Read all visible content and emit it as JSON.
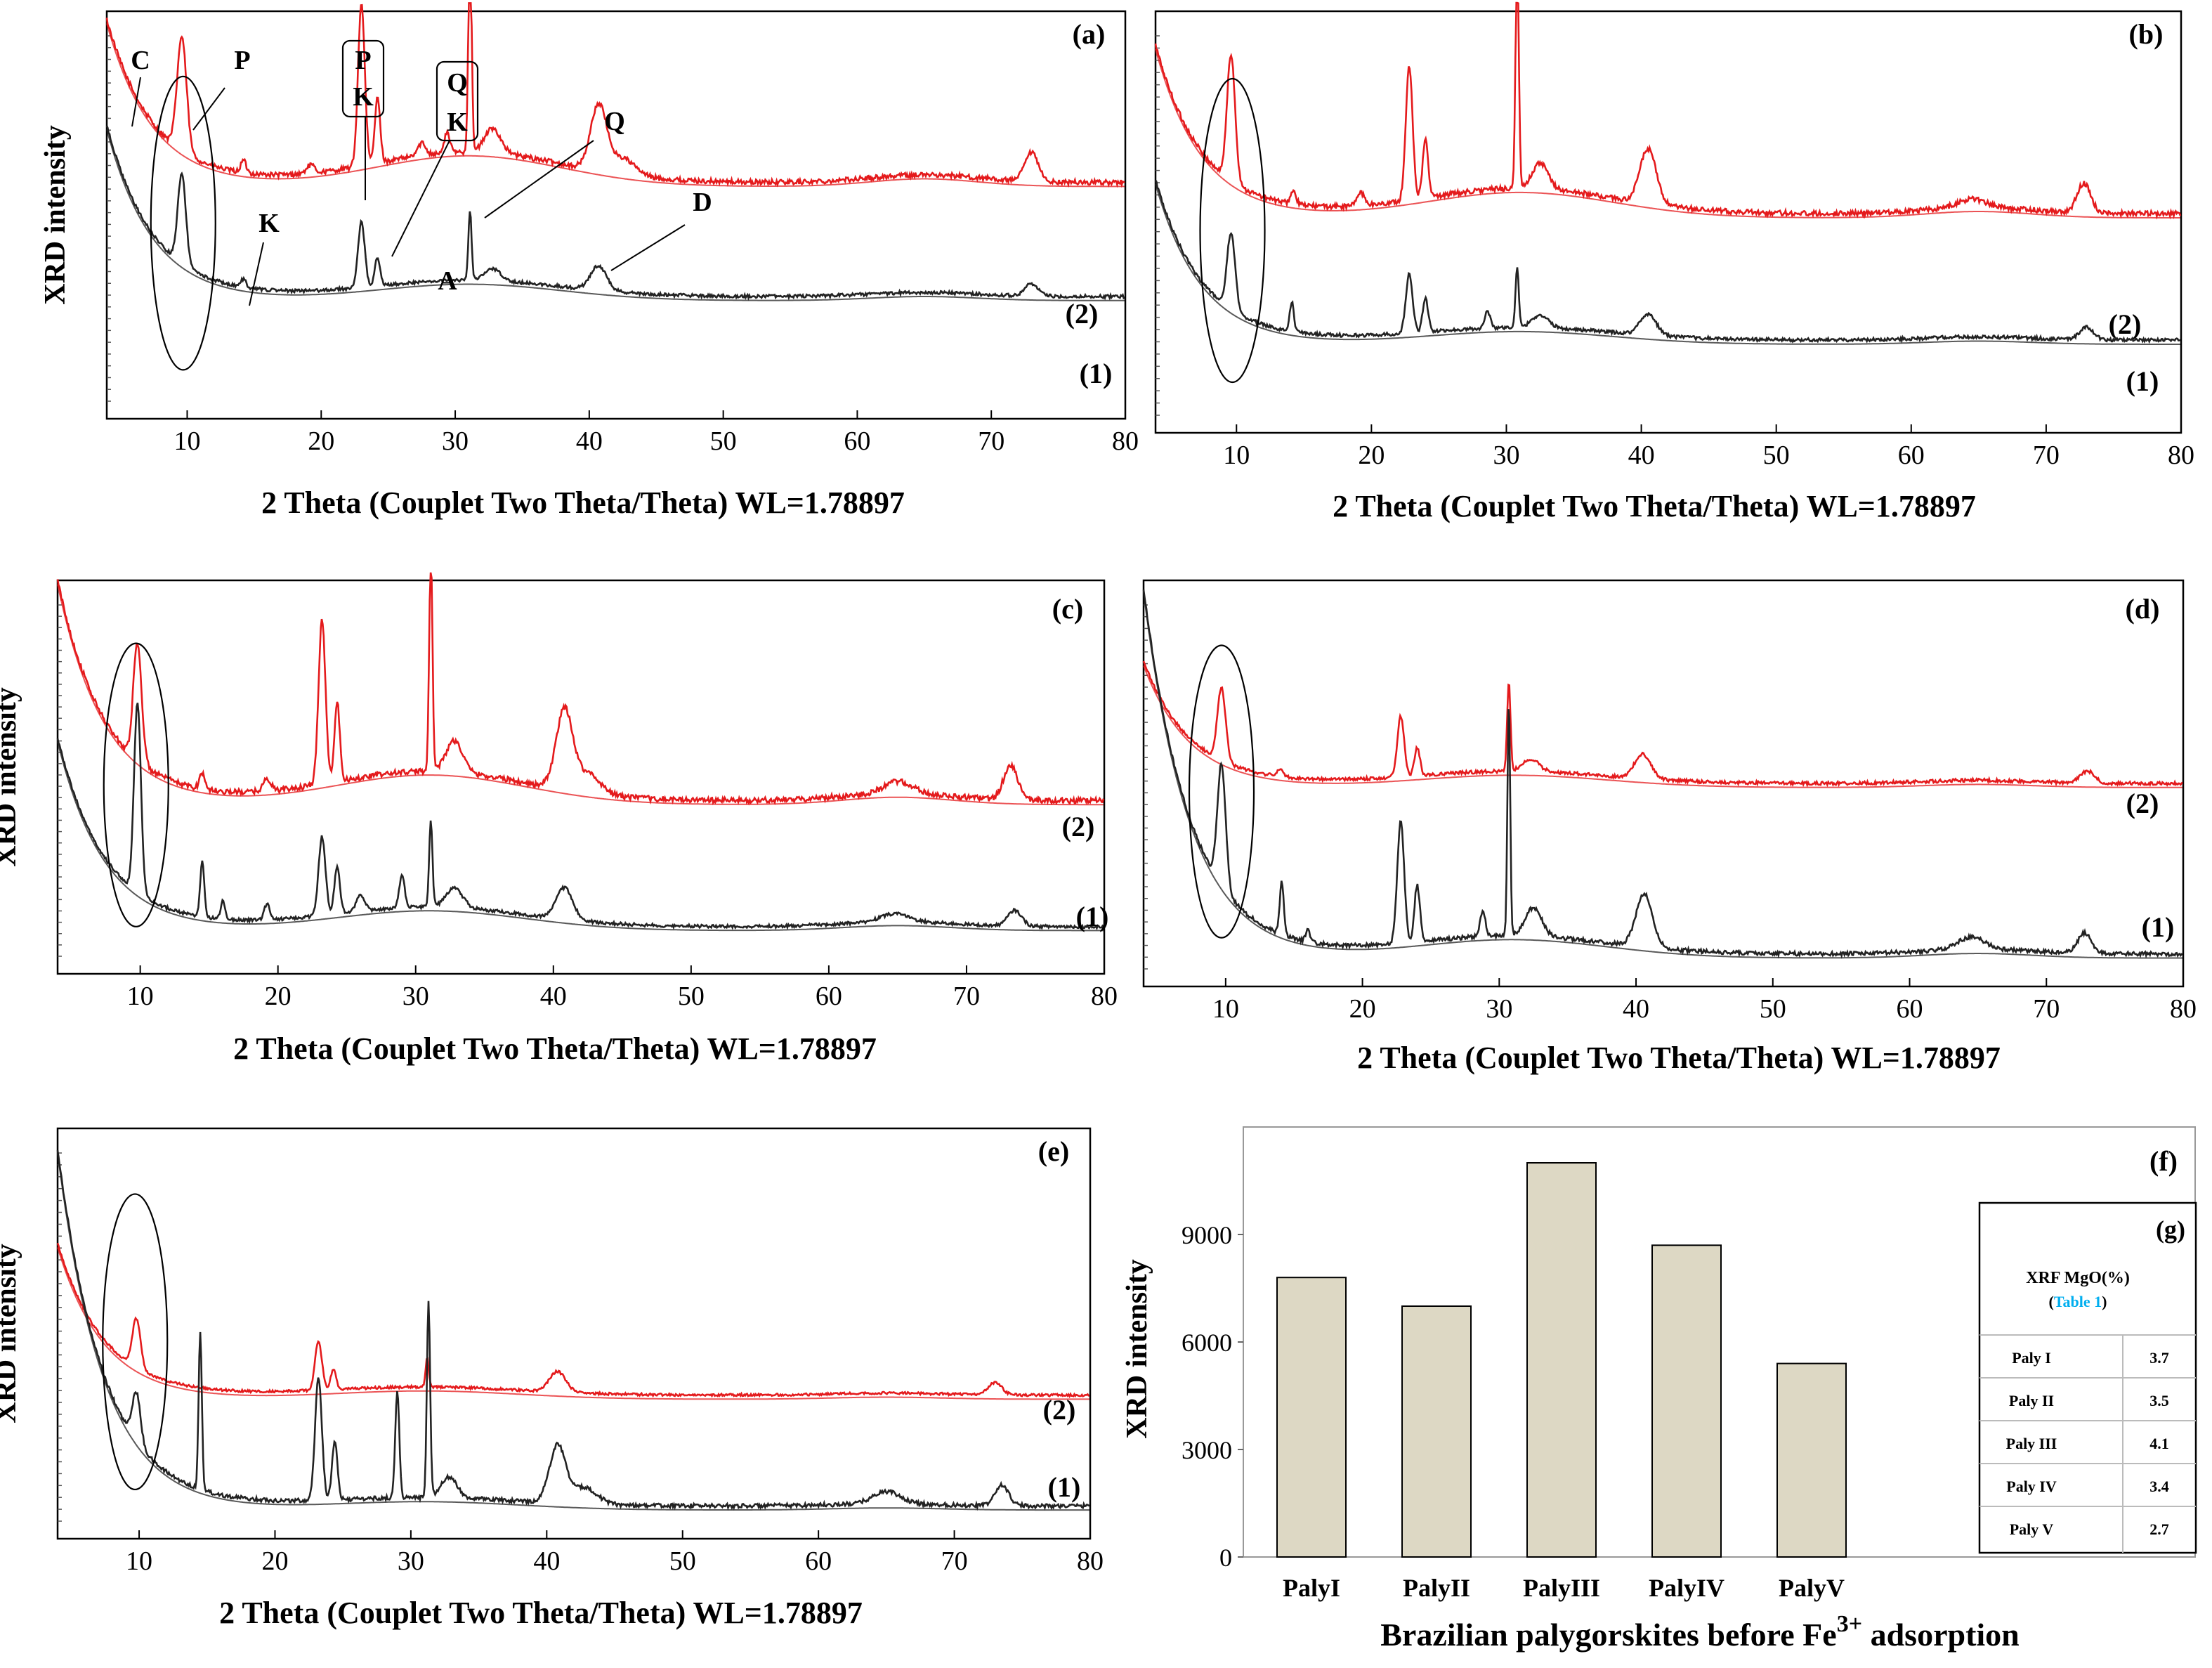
{
  "chart_data": [
    {
      "panel": "(a)",
      "type": "line",
      "ylabel": "XRD intensity",
      "xlabel": "2 Theta (Couplet Two Theta/Theta) WL=1.78897",
      "xlim": [
        4,
        80
      ],
      "xticks": [
        10,
        20,
        30,
        40,
        50,
        60,
        70,
        80
      ],
      "series_labels": [
        "(2)",
        "(1)"
      ],
      "series": [
        {
          "name": "(2)",
          "color": "#e41a1c",
          "base": 0.58,
          "start": 0.98,
          "bump": 0.075,
          "noise": 0.006,
          "peaks": [
            [
              9.6,
              0.28,
              0.35
            ],
            [
              14.2,
              0.03,
              0.2
            ],
            [
              19.2,
              0.02,
              0.3
            ],
            [
              23.0,
              0.4,
              0.25
            ],
            [
              24.2,
              0.16,
              0.2
            ],
            [
              27.5,
              0.03,
              0.3
            ],
            [
              29.4,
              0.05,
              0.2
            ],
            [
              31.1,
              0.55,
              0.12
            ],
            [
              32.8,
              0.06,
              0.6
            ],
            [
              40.7,
              0.16,
              0.6
            ],
            [
              42.5,
              0.04,
              0.9
            ],
            [
              73.0,
              0.07,
              0.5
            ]
          ]
        },
        {
          "name": "(1)",
          "color": "#222222",
          "base": 0.3,
          "start": 0.72,
          "bump": 0.04,
          "noise": 0.004,
          "peaks": [
            [
              9.6,
              0.22,
              0.3
            ],
            [
              14.2,
              0.02,
              0.2
            ],
            [
              23.0,
              0.16,
              0.25
            ],
            [
              24.2,
              0.07,
              0.2
            ],
            [
              31.1,
              0.17,
              0.12
            ],
            [
              32.8,
              0.03,
              0.6
            ],
            [
              40.7,
              0.06,
              0.6
            ],
            [
              73.0,
              0.03,
              0.5
            ]
          ]
        }
      ],
      "annotations": [
        "C",
        "P",
        "P",
        "K",
        "Q",
        "K",
        "K",
        "Q",
        "D",
        "A"
      ]
    },
    {
      "panel": "(b)",
      "type": "line",
      "ylabel": "",
      "xlabel": "2 Theta (Couplet Two Theta/Theta) WL=1.78897",
      "xlim": [
        4,
        80
      ],
      "xticks": [
        10,
        20,
        30,
        40,
        50,
        60,
        70,
        80
      ],
      "series_labels": [
        "(2)",
        "(1)"
      ],
      "series": [
        {
          "name": "(2)",
          "color": "#e41a1c",
          "base": 0.52,
          "start": 0.92,
          "bump": 0.06,
          "noise": 0.006,
          "peaks": [
            [
              9.6,
              0.3,
              0.3
            ],
            [
              14.2,
              0.03,
              0.2
            ],
            [
              19.2,
              0.03,
              0.3
            ],
            [
              22.8,
              0.32,
              0.25
            ],
            [
              24.0,
              0.14,
              0.2
            ],
            [
              30.8,
              0.55,
              0.12
            ],
            [
              32.5,
              0.06,
              0.6
            ],
            [
              40.5,
              0.13,
              0.6
            ],
            [
              64.5,
              0.02,
              1.0
            ],
            [
              72.8,
              0.07,
              0.5
            ]
          ]
        },
        {
          "name": "(1)",
          "color": "#222222",
          "base": 0.22,
          "start": 0.6,
          "bump": 0.03,
          "noise": 0.004,
          "peaks": [
            [
              9.6,
              0.18,
              0.3
            ],
            [
              14.1,
              0.07,
              0.15
            ],
            [
              22.8,
              0.14,
              0.25
            ],
            [
              24.0,
              0.08,
              0.2
            ],
            [
              28.6,
              0.04,
              0.2
            ],
            [
              30.8,
              0.14,
              0.12
            ],
            [
              32.5,
              0.03,
              0.6
            ],
            [
              40.5,
              0.05,
              0.6
            ],
            [
              73.0,
              0.03,
              0.5
            ]
          ]
        }
      ]
    },
    {
      "panel": "(c)",
      "type": "line",
      "ylabel": "XRD intensity",
      "xlabel": "2 Theta (Couplet Two Theta/Theta) WL=1.78897",
      "xlim": [
        4,
        80
      ],
      "xticks": [
        10,
        20,
        30,
        40,
        50,
        60,
        70,
        80
      ],
      "series_labels": [
        "(2)",
        "(1)"
      ],
      "series": [
        {
          "name": "(2)",
          "color": "#e41a1c",
          "base": 0.44,
          "start": 1.0,
          "bump": 0.075,
          "noise": 0.007,
          "peaks": [
            [
              9.8,
              0.3,
              0.3
            ],
            [
              14.5,
              0.04,
              0.2
            ],
            [
              19.2,
              0.03,
              0.3
            ],
            [
              23.2,
              0.42,
              0.25
            ],
            [
              24.3,
              0.2,
              0.2
            ],
            [
              31.1,
              0.55,
              0.12
            ],
            [
              32.8,
              0.08,
              0.6
            ],
            [
              40.8,
              0.2,
              0.6
            ],
            [
              42.5,
              0.05,
              0.9
            ],
            [
              65.0,
              0.03,
              1.0
            ],
            [
              73.2,
              0.09,
              0.5
            ]
          ]
        },
        {
          "name": "(1)",
          "color": "#222222",
          "base": 0.12,
          "start": 0.6,
          "bump": 0.05,
          "noise": 0.004,
          "peaks": [
            [
              9.8,
              0.48,
              0.25
            ],
            [
              14.5,
              0.14,
              0.15
            ],
            [
              16.0,
              0.05,
              0.15
            ],
            [
              19.2,
              0.04,
              0.2
            ],
            [
              23.2,
              0.2,
              0.25
            ],
            [
              24.3,
              0.12,
              0.2
            ],
            [
              26.0,
              0.04,
              0.3
            ],
            [
              29.0,
              0.08,
              0.2
            ],
            [
              31.1,
              0.22,
              0.12
            ],
            [
              32.8,
              0.05,
              0.6
            ],
            [
              40.8,
              0.08,
              0.6
            ],
            [
              64.8,
              0.02,
              1.0
            ],
            [
              73.5,
              0.04,
              0.5
            ]
          ]
        }
      ]
    },
    {
      "panel": "(d)",
      "type": "line",
      "ylabel": "",
      "xlabel": "2 Theta (Couplet Two Theta/Theta) WL=1.78897",
      "xlim": [
        4,
        80
      ],
      "xticks": [
        10,
        20,
        30,
        40,
        50,
        60,
        70,
        80
      ],
      "series_labels": [
        "(2)",
        "(1)"
      ],
      "series": [
        {
          "name": "(2)",
          "color": "#e41a1c",
          "base": 0.5,
          "start": 0.8,
          "bump": 0.03,
          "noise": 0.004,
          "peaks": [
            [
              9.7,
              0.18,
              0.3
            ],
            [
              14.0,
              0.02,
              0.2
            ],
            [
              22.8,
              0.15,
              0.25
            ],
            [
              24.0,
              0.07,
              0.2
            ],
            [
              30.7,
              0.22,
              0.12
            ],
            [
              32.3,
              0.03,
              0.6
            ],
            [
              40.5,
              0.06,
              0.6
            ],
            [
              73.0,
              0.03,
              0.5
            ]
          ]
        },
        {
          "name": "(1)",
          "color": "#222222",
          "base": 0.08,
          "start": 0.98,
          "bump": 0.045,
          "noise": 0.005,
          "peaks": [
            [
              9.7,
              0.3,
              0.3
            ],
            [
              14.1,
              0.13,
              0.15
            ],
            [
              16.0,
              0.03,
              0.15
            ],
            [
              22.8,
              0.3,
              0.25
            ],
            [
              24.0,
              0.14,
              0.2
            ],
            [
              28.8,
              0.06,
              0.2
            ],
            [
              30.7,
              0.58,
              0.1
            ],
            [
              32.5,
              0.07,
              0.6
            ],
            [
              40.6,
              0.13,
              0.6
            ],
            [
              64.5,
              0.03,
              1.0
            ],
            [
              72.8,
              0.05,
              0.5
            ]
          ]
        }
      ]
    },
    {
      "panel": "(e)",
      "type": "line",
      "ylabel": "XRD intensity",
      "xlabel": "2 Theta (Couplet Two Theta/Theta) WL=1.78897",
      "xlim": [
        4,
        80
      ],
      "xticks": [
        10,
        20,
        30,
        40,
        50,
        60,
        70,
        80
      ],
      "series_labels": [
        "(2)",
        "(1)"
      ],
      "series": [
        {
          "name": "(2)",
          "color": "#e41a1c",
          "base": 0.35,
          "start": 0.72,
          "bump": 0.02,
          "noise": 0.003,
          "peaks": [
            [
              9.8,
              0.12,
              0.3
            ],
            [
              23.2,
              0.12,
              0.25
            ],
            [
              24.3,
              0.05,
              0.2
            ],
            [
              31.2,
              0.07,
              0.12
            ],
            [
              40.8,
              0.05,
              0.6
            ],
            [
              73.0,
              0.03,
              0.5
            ]
          ]
        },
        {
          "name": "(1)",
          "color": "#222222",
          "base": 0.08,
          "start": 0.95,
          "bump": 0.02,
          "noise": 0.005,
          "peaks": [
            [
              9.8,
              0.12,
              0.3
            ],
            [
              14.5,
              0.38,
              0.12
            ],
            [
              23.2,
              0.3,
              0.25
            ],
            [
              24.4,
              0.14,
              0.2
            ],
            [
              29.0,
              0.26,
              0.15
            ],
            [
              31.3,
              0.48,
              0.12
            ],
            [
              32.8,
              0.05,
              0.6
            ],
            [
              40.8,
              0.14,
              0.6
            ],
            [
              42.8,
              0.04,
              0.9
            ],
            [
              65.0,
              0.03,
              1.0
            ],
            [
              73.5,
              0.05,
              0.5
            ]
          ]
        }
      ]
    },
    {
      "panel": "(f)",
      "type": "bar",
      "ylabel": "XRD intensity",
      "xlabel": "Brazilian palygorskites before Fe",
      "xlabel_superscript": "3+",
      "xlabel_suffix": " adsorption",
      "categories": [
        "PalyI",
        "PalyII",
        "PalyIII",
        "PalyIV",
        "PalyV"
      ],
      "values": [
        7800,
        7000,
        11000,
        8700,
        5400
      ],
      "ylim": [
        0,
        12000
      ],
      "yticks": [
        0,
        3000,
        6000,
        9000
      ],
      "bar_color": "#ddd8c4"
    },
    {
      "panel": "(g)",
      "type": "table",
      "header": "XRF MgO(%)",
      "header_ref": "Table 1",
      "rows": [
        [
          "Paly I",
          "3.7"
        ],
        [
          "Paly II",
          "3.5"
        ],
        [
          "Paly III",
          "4.1"
        ],
        [
          "Paly IV",
          "3.4"
        ],
        [
          "Paly V",
          "2.7"
        ]
      ]
    }
  ]
}
